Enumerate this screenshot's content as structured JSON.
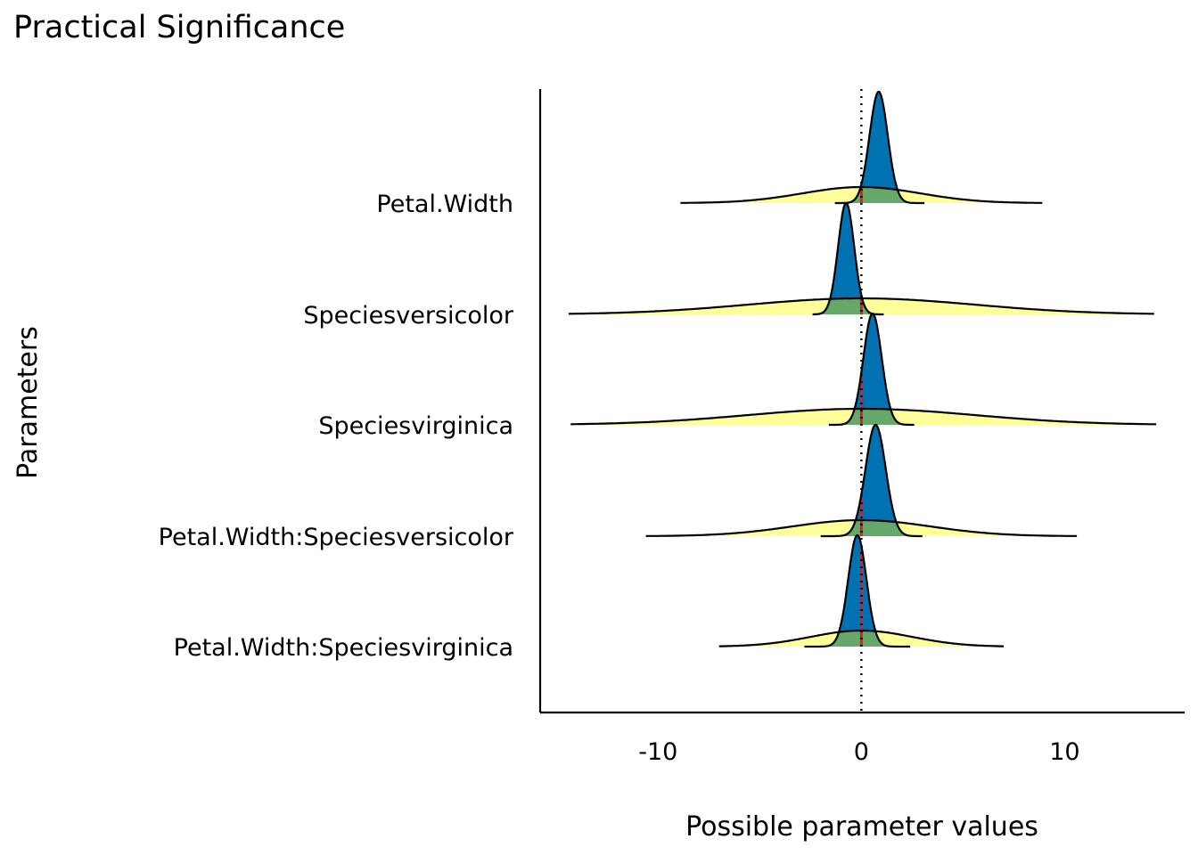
{
  "chart_data": {
    "type": "density-ridges",
    "title": "Practical Significance",
    "xlabel": "Possible parameter values",
    "ylabel": "Parameters",
    "xlim": [
      -15.8,
      15.9
    ],
    "x_ticks": [
      -10,
      0,
      10
    ],
    "x_tick_labels": [
      "-10",
      "0",
      "10"
    ],
    "reference_line": 0,
    "grid": false,
    "legend": "none",
    "parameters": [
      {
        "name": "Petal.Width",
        "posterior": {
          "mean": 0.85,
          "sd": 0.45,
          "support": [
            -1.3,
            3.1
          ]
        },
        "prior": {
          "mean": 0,
          "sd": 2.9,
          "support": [
            -8.9,
            8.9
          ]
        }
      },
      {
        "name": "Speciesversicolor",
        "posterior": {
          "mean": -0.75,
          "sd": 0.4,
          "support": [
            -2.4,
            1.1
          ]
        },
        "prior": {
          "mean": 0,
          "sd": 5.6,
          "support": [
            -14.4,
            14.4
          ]
        }
      },
      {
        "name": "Speciesvirginica",
        "posterior": {
          "mean": 0.55,
          "sd": 0.45,
          "support": [
            -1.6,
            2.6
          ]
        },
        "prior": {
          "mean": 0,
          "sd": 5.6,
          "support": [
            -14.3,
            14.5
          ]
        }
      },
      {
        "name": "Petal.Width:Speciesversicolor",
        "posterior": {
          "mean": 0.7,
          "sd": 0.5,
          "support": [
            -2.0,
            3.0
          ]
        },
        "prior": {
          "mean": 0,
          "sd": 3.4,
          "support": [
            -10.6,
            10.6
          ]
        }
      },
      {
        "name": "Petal.Width:Speciesvirginica",
        "posterior": {
          "mean": -0.2,
          "sd": 0.45,
          "support": [
            -2.8,
            2.4
          ]
        },
        "prior": {
          "mean": 0,
          "sd": 2.5,
          "support": [
            -7.0,
            7.0
          ]
        }
      }
    ],
    "colors": {
      "posterior_positive": "#0072B2",
      "posterior_negative": "#0072B2",
      "prior_fill": "#FFFF99",
      "overlap_fill": "#66A86A",
      "reference_line": "#000000",
      "zero_segment": "#E41A1C",
      "outline": "#000000"
    }
  }
}
